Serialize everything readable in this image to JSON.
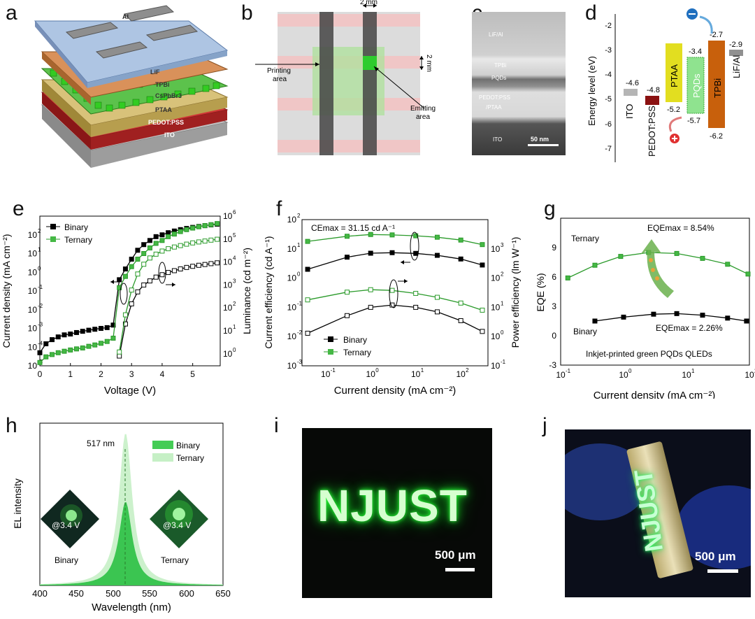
{
  "panels": {
    "a": {
      "label": "a",
      "layers": [
        "Al",
        "LiF",
        "TPBi",
        "CsPbBr3",
        "PTAA",
        "PEDOT:PSS",
        "ITO"
      ]
    },
    "b": {
      "label": "b",
      "dim_top": "2 mm",
      "dim_right": "2 mm",
      "printing_area": [
        "Printing",
        "area"
      ],
      "emitting_area": [
        "Emitting",
        "area"
      ]
    },
    "c": {
      "label": "c",
      "layers": [
        "LiF/Al",
        "TPBi",
        "PQDs",
        "PEDOT:PSS",
        "/PTAA",
        "ITO"
      ],
      "scale": "50 nm"
    },
    "d": {
      "label": "d",
      "ylabel": "Energy level (eV)",
      "yticks": [
        "-2",
        "-3",
        "-4",
        "-5",
        "-6",
        "-7"
      ],
      "materials": [
        {
          "name": "ITO",
          "level": "-4.6"
        },
        {
          "name": "PEDOT:PSS",
          "level": "-4.8"
        },
        {
          "name": "PTAA",
          "top": "",
          "bottom": "-5.2"
        },
        {
          "name": "PQDs",
          "top": "-3.4",
          "bottom": "-5.7"
        },
        {
          "name": "TPBi",
          "top": "-2.7",
          "bottom": "-6.2"
        },
        {
          "name": "LiF/Al",
          "level": "-2.9"
        }
      ]
    },
    "e": {
      "label": "e",
      "ylabel_left": "Current density (mA cm⁻²)",
      "ylabel_right": "Luminance (cd m⁻²)",
      "xlabel": "Voltage (V)",
      "legend": [
        "Binary",
        "Ternary"
      ]
    },
    "f": {
      "label": "f",
      "annotation": "CEmax = 31.15 cd A⁻¹",
      "ylabel_left": "Current efficiency (cd A⁻¹)",
      "ylabel_right": "Power efficiency (lm W⁻¹)",
      "xlabel": "Current density (mA cm⁻²)",
      "legend": [
        "Binary",
        "Ternary"
      ]
    },
    "g": {
      "label": "g",
      "ylabel": "EQE (%)",
      "xlabel": "Current density (mA cm⁻²)",
      "ternary": "Ternary",
      "binary": "Binary",
      "eqe_ternary": "EQEmax = 8.54%",
      "eqe_binary": "EQEmax = 2.26%",
      "caption": "Inkjet-printed green PQDs QLEDs"
    },
    "h": {
      "label": "h",
      "ylabel": "EL intensity",
      "xlabel": "Wavelength (nm)",
      "peak": "517 nm",
      "legend": [
        "Binary",
        "Ternary"
      ],
      "inset_voltage": "@3.4 V",
      "inset_labels": [
        "Binary",
        "Ternary"
      ],
      "xticks": [
        "400",
        "450",
        "500",
        "550",
        "600",
        "650"
      ]
    },
    "i": {
      "label": "i",
      "text": "NJUST",
      "scale": "500 μm"
    },
    "j": {
      "label": "j",
      "text": "NJUST",
      "scale": "500 μm"
    }
  },
  "chart_data": [
    {
      "type": "line",
      "panel": "e",
      "xlabel": "Voltage (V)",
      "ylabel": "Current density (mA cm-2)",
      "y2label": "Luminance (cd m-2)",
      "xlim": [
        0,
        5.9
      ],
      "ylim": [
        1e-05,
        1000.0
      ],
      "y2lim": [
        0.3,
        1000000.0
      ],
      "yscale": "log",
      "series": [
        {
          "name": "Binary",
          "axis": "left",
          "x": [
            0,
            0.2,
            0.4,
            0.6,
            0.8,
            1.0,
            1.2,
            1.4,
            1.6,
            1.8,
            2.0,
            2.2,
            2.4,
            2.6,
            2.8,
            3.0,
            3.2,
            3.4,
            3.6,
            3.8,
            4.0,
            4.2,
            4.4,
            4.6,
            4.8,
            5.0,
            5.2,
            5.4,
            5.6,
            5.8
          ],
          "y": [
            5e-05,
            0.00015,
            0.00025,
            0.00035,
            0.00045,
            0.0005,
            0.0006,
            0.0007,
            0.0008,
            0.0009,
            0.001,
            0.0011,
            0.0015,
            0.4,
            1.5,
            5,
            15,
            30,
            50,
            80,
            100,
            130,
            160,
            190,
            220,
            250,
            280,
            310,
            340,
            370
          ]
        },
        {
          "name": "Ternary",
          "axis": "left",
          "x": [
            0,
            0.2,
            0.4,
            0.6,
            0.8,
            1.0,
            1.2,
            1.4,
            1.6,
            1.8,
            2.0,
            2.2,
            2.4,
            2.6,
            2.8,
            3.0,
            3.2,
            3.4,
            3.6,
            3.8,
            4.0,
            4.2,
            4.4,
            4.6,
            4.8,
            5.0,
            5.2,
            5.4,
            5.6,
            5.8
          ],
          "y": [
            1.5e-05,
            3e-05,
            4e-05,
            5e-05,
            6e-05,
            7e-05,
            8e-05,
            9e-05,
            0.00011,
            0.00013,
            0.00016,
            0.0002,
            0.0003,
            0.15,
            0.6,
            2,
            5,
            10,
            20,
            35,
            50,
            80,
            110,
            150,
            190,
            230,
            270,
            310,
            350,
            400
          ]
        },
        {
          "name": "Binary",
          "axis": "right",
          "x": [
            2.6,
            2.8,
            3.0,
            3.2,
            3.4,
            3.6,
            3.8,
            4.0,
            4.2,
            4.4,
            4.6,
            4.8,
            5.0,
            5.2,
            5.4,
            5.6,
            5.8
          ],
          "y": [
            0.8,
            20,
            150,
            500,
            1000,
            1500,
            2200,
            2800,
            3500,
            4200,
            5000,
            5800,
            6500,
            7200,
            7800,
            8500,
            9200
          ]
        },
        {
          "name": "Ternary",
          "axis": "right",
          "x": [
            2.6,
            2.8,
            3.0,
            3.2,
            3.4,
            3.6,
            3.8,
            4.0,
            4.2,
            4.4,
            4.6,
            4.8,
            5.0,
            5.2,
            5.4,
            5.6,
            5.8
          ],
          "y": [
            1.2,
            50,
            600,
            3000,
            8000,
            15000,
            22000,
            30000,
            38000,
            45000,
            52000,
            60000,
            68000,
            75000,
            82000,
            90000,
            98000
          ]
        }
      ]
    },
    {
      "type": "line",
      "panel": "f",
      "xlabel": "Current density (mA cm-2)",
      "ylabel": "Current efficiency (cd A-1)",
      "y2label": "Power efficiency (lm W-1)",
      "xscale": "log",
      "yscale": "log",
      "xlim": [
        0.03,
        400
      ],
      "ylim": [
        0.001,
        100.0
      ],
      "y2lim": [
        0.1,
        10000.0
      ],
      "series": [
        {
          "name": "Ternary CE",
          "axis": "left",
          "x": [
            0.04,
            0.3,
            1,
            3,
            10,
            30,
            100,
            300
          ],
          "y": [
            18,
            27,
            31,
            30,
            28,
            25,
            20,
            14
          ]
        },
        {
          "name": "Binary CE",
          "axis": "left",
          "x": [
            0.04,
            0.3,
            1,
            3,
            10,
            30,
            100,
            300
          ],
          "y": [
            2.0,
            5.2,
            7.1,
            7.4,
            7.0,
            6.0,
            4.5,
            2.8
          ]
        },
        {
          "name": "Ternary PE",
          "axis": "right",
          "x": [
            0.04,
            0.3,
            1,
            3,
            10,
            30,
            100,
            300
          ],
          "y": [
            18,
            33,
            40,
            38,
            30,
            22,
            14,
            8
          ]
        },
        {
          "name": "Binary PE",
          "axis": "right",
          "x": [
            0.04,
            0.3,
            1,
            3,
            10,
            30,
            100,
            300
          ],
          "y": [
            1.3,
            5.2,
            10,
            12,
            10,
            7,
            3.5,
            1.5
          ]
        }
      ]
    },
    {
      "type": "line",
      "panel": "g",
      "xlabel": "Current density (mA cm-2)",
      "ylabel": "EQE (%)",
      "xscale": "log",
      "xlim": [
        0.1,
        100
      ],
      "ylim": [
        -3,
        12
      ],
      "series": [
        {
          "name": "Ternary",
          "x": [
            0.13,
            0.35,
            0.9,
            2.5,
            7,
            18,
            45,
            95
          ],
          "y": [
            5.9,
            7.2,
            8.1,
            8.5,
            8.4,
            7.9,
            7.3,
            6.3
          ]
        },
        {
          "name": "Binary",
          "x": [
            0.35,
            1,
            3,
            7,
            18,
            45,
            90
          ],
          "y": [
            1.5,
            1.9,
            2.2,
            2.26,
            2.1,
            1.8,
            1.5
          ]
        }
      ]
    },
    {
      "type": "area",
      "panel": "h",
      "xlabel": "Wavelength (nm)",
      "ylabel": "EL intensity",
      "xlim": [
        400,
        650
      ],
      "peak_nm": 517,
      "series": [
        {
          "name": "Binary",
          "peak": 517,
          "relative_height": 0.55
        },
        {
          "name": "Ternary",
          "peak": 517,
          "relative_height": 1.0
        }
      ]
    }
  ]
}
